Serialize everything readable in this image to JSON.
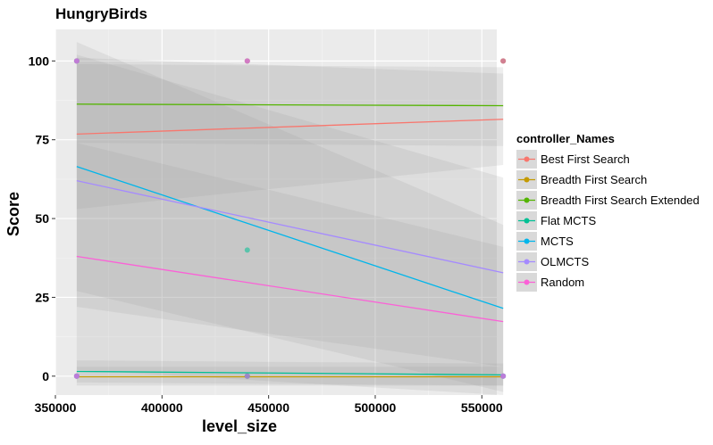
{
  "chart_data": {
    "type": "scatter",
    "title": "HungryBirds",
    "xlabel": "level_size",
    "ylabel": "Score",
    "xlim": [
      350000,
      557000
    ],
    "ylim": [
      -6,
      110
    ],
    "x_ticks": [
      350000,
      400000,
      450000,
      500000,
      550000
    ],
    "x_tick_labels": [
      "350000",
      "400000",
      "450000",
      "500000",
      "550000"
    ],
    "y_ticks": [
      0,
      25,
      50,
      75,
      100
    ],
    "y_tick_labels": [
      "0",
      "25",
      "50",
      "75",
      "100"
    ],
    "grid": true,
    "panel_background": "#ebebeb",
    "legend": {
      "title": "controller_Names",
      "placement": "right"
    },
    "fit": {
      "method": "linear",
      "confidence_band": true
    },
    "series": [
      {
        "name": "Best First Search",
        "color": "#F8766D",
        "points": [
          [
            360000,
            100
          ],
          [
            440000,
            100
          ],
          [
            560000,
            100
          ],
          [
            360000,
            0
          ],
          [
            560000,
            100
          ]
        ],
        "fit_line": [
          [
            360000,
            76.8
          ],
          [
            560000,
            81.5
          ]
        ],
        "band": [
          [
            360000,
            53,
            101
          ],
          [
            560000,
            67,
            96
          ]
        ]
      },
      {
        "name": "Breadth First Search",
        "color": "#C49A00",
        "points": [
          [
            360000,
            0
          ],
          [
            440000,
            0
          ],
          [
            560000,
            0
          ]
        ],
        "fit_line": [
          [
            360000,
            -0.2
          ],
          [
            560000,
            -0.2
          ]
        ],
        "band": [
          [
            360000,
            -3,
            3
          ],
          [
            560000,
            -3,
            3
          ]
        ]
      },
      {
        "name": "Breadth First Search Extended",
        "color": "#53B400",
        "points": [
          [
            360000,
            100
          ],
          [
            440000,
            100
          ],
          [
            560000,
            100
          ]
        ],
        "fit_line": [
          [
            360000,
            86.3
          ],
          [
            560000,
            85.8
          ]
        ],
        "band": [
          [
            360000,
            74,
            99
          ],
          [
            560000,
            73,
            98
          ]
        ]
      },
      {
        "name": "Flat MCTS",
        "color": "#00C094",
        "points": [
          [
            360000,
            0
          ],
          [
            440000,
            40
          ],
          [
            440000,
            0
          ],
          [
            560000,
            0
          ]
        ],
        "fit_line": [
          [
            360000,
            1.5
          ],
          [
            560000,
            0.4
          ]
        ],
        "band": [
          [
            360000,
            -2,
            5
          ],
          [
            560000,
            -3,
            4
          ]
        ]
      },
      {
        "name": "MCTS",
        "color": "#00B6EB",
        "points": [
          [
            360000,
            100
          ],
          [
            360000,
            0
          ],
          [
            440000,
            0
          ],
          [
            560000,
            0
          ]
        ],
        "fit_line": [
          [
            360000,
            66.5
          ],
          [
            560000,
            21.5
          ]
        ],
        "band": [
          [
            360000,
            27,
            106
          ],
          [
            560000,
            -5,
            48
          ]
        ]
      },
      {
        "name": "OLMCTS",
        "color": "#A58AFF",
        "points": [
          [
            360000,
            100
          ],
          [
            360000,
            0
          ],
          [
            440000,
            100
          ],
          [
            560000,
            0
          ]
        ],
        "fit_line": [
          [
            360000,
            62
          ],
          [
            560000,
            32.8
          ]
        ],
        "band": [
          [
            360000,
            22,
            102
          ],
          [
            560000,
            3,
            63
          ]
        ]
      },
      {
        "name": "Random",
        "color": "#FB61D7",
        "points": [
          [
            360000,
            100
          ],
          [
            360000,
            0
          ],
          [
            440000,
            100
          ],
          [
            440000,
            0
          ],
          [
            560000,
            100
          ],
          [
            560000,
            0
          ]
        ],
        "fit_line": [
          [
            360000,
            38
          ],
          [
            560000,
            17.3
          ]
        ],
        "band": [
          [
            360000,
            2,
            74
          ],
          [
            560000,
            -6,
            41
          ]
        ]
      }
    ]
  }
}
